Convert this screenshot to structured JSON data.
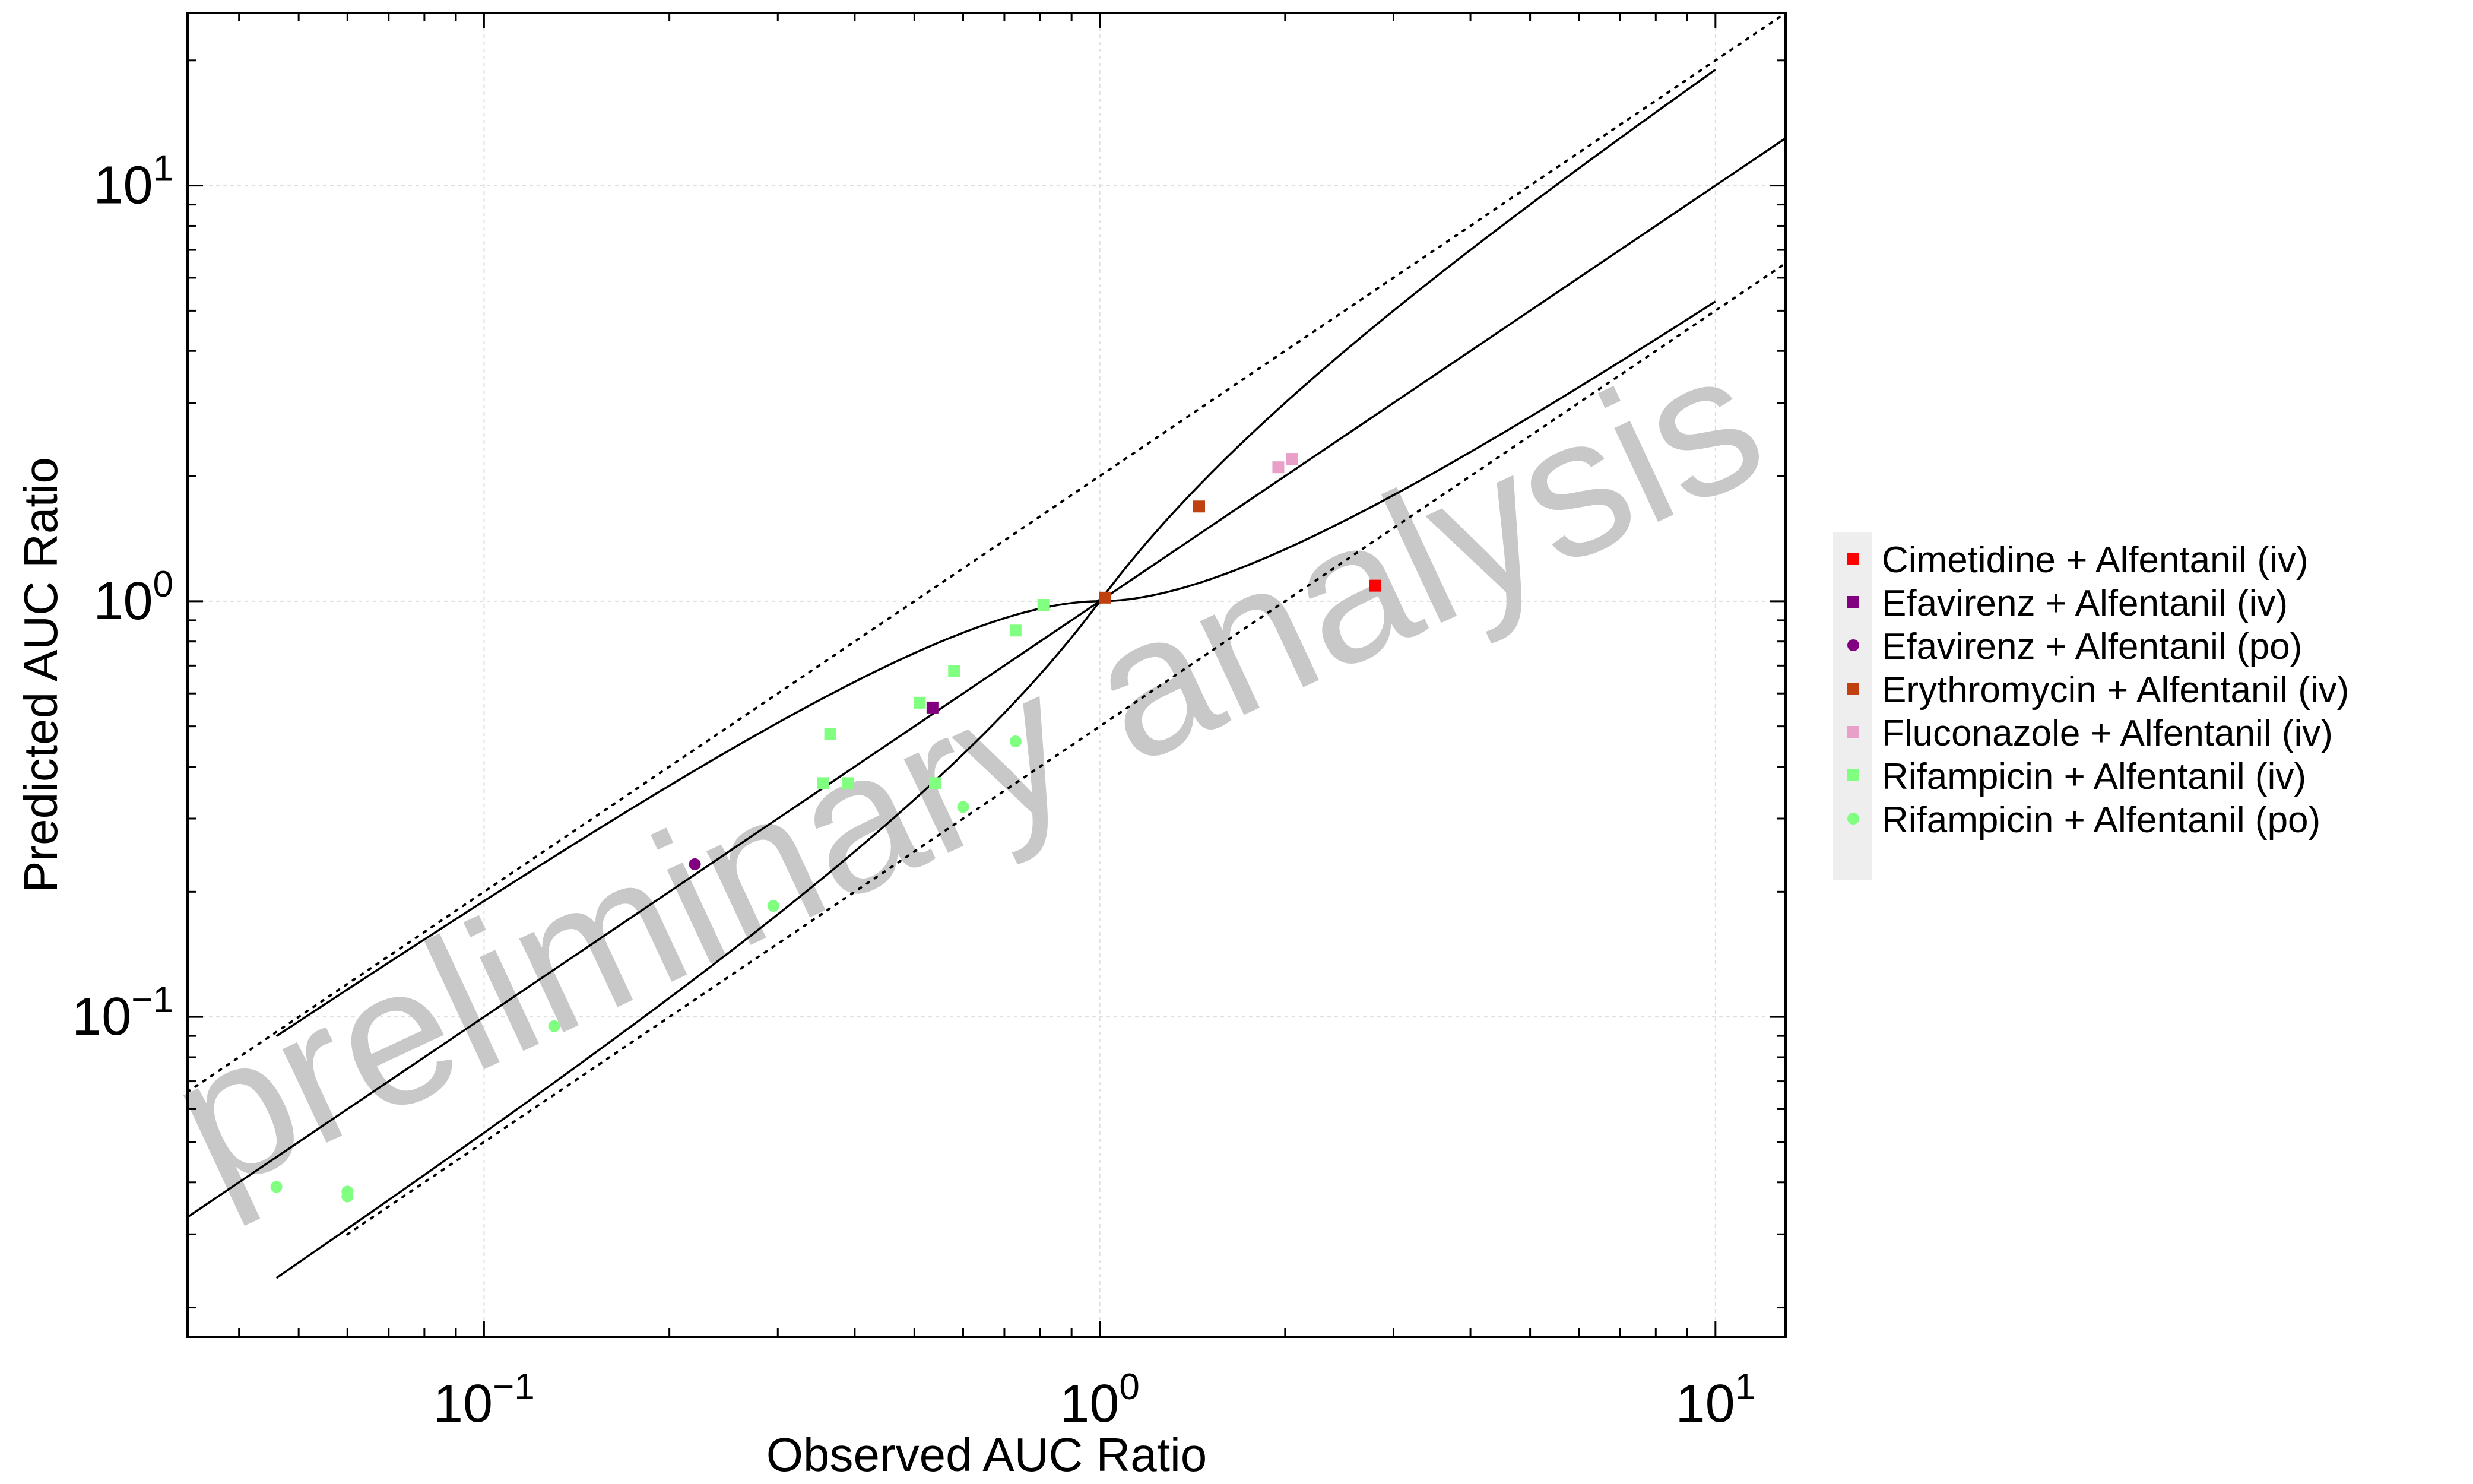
{
  "chart_data": {
    "type": "scatter",
    "xlabel": "Observed AUC Ratio",
    "ylabel": "Predicted AUC Ratio",
    "xscale": "log",
    "yscale": "log",
    "xlim": [
      0.033,
      13
    ],
    "ylim": [
      0.017,
      26
    ],
    "x_ticks": [
      {
        "value": 0.1,
        "base": "10",
        "exp": "−1"
      },
      {
        "value": 1,
        "base": "10",
        "exp": "0"
      },
      {
        "value": 10,
        "base": "10",
        "exp": "1"
      }
    ],
    "y_ticks": [
      {
        "value": 0.1,
        "base": "10",
        "exp": "−1"
      },
      {
        "value": 1,
        "base": "10",
        "exp": "0"
      },
      {
        "value": 10,
        "base": "10",
        "exp": "1"
      }
    ],
    "grid": true,
    "legend_position": "right",
    "watermark": "preliminary analysis",
    "reference_lines": {
      "identity": "y = x",
      "twofold": "y = 2x and y = x/2 (dotted)",
      "guest_limits": "Guest et al. limits (solid curves)"
    },
    "series": [
      {
        "name": "Cimetidine + Alfentanil (iv)",
        "marker": "square",
        "color": "#ff0000",
        "points": [
          [
            2.8,
            1.09
          ]
        ]
      },
      {
        "name": "Efavirenz + Alfentanil (iv)",
        "marker": "square",
        "color": "#800080",
        "points": [
          [
            0.535,
            0.555
          ]
        ]
      },
      {
        "name": "Efavirenz + Alfentanil (po)",
        "marker": "circle",
        "color": "#800080",
        "points": [
          [
            0.22,
            0.233
          ]
        ]
      },
      {
        "name": "Erythromycin + Alfentanil (iv)",
        "marker": "square",
        "color": "#c04010",
        "points": [
          [
            1.02,
            1.02
          ],
          [
            1.45,
            1.69
          ]
        ]
      },
      {
        "name": "Fluconazole + Alfentanil (iv)",
        "marker": "square",
        "color": "#e8a0c8",
        "points": [
          [
            1.95,
            2.1
          ],
          [
            2.05,
            2.2
          ]
        ]
      },
      {
        "name": "Rifampicin + Alfentanil (iv)",
        "marker": "square",
        "color": "#80ff80",
        "points": [
          [
            0.81,
            0.98
          ],
          [
            0.73,
            0.85
          ],
          [
            0.58,
            0.68
          ],
          [
            0.51,
            0.57
          ],
          [
            0.365,
            0.48
          ],
          [
            0.39,
            0.365
          ],
          [
            0.355,
            0.365
          ],
          [
            0.54,
            0.365
          ]
        ]
      },
      {
        "name": "Rifampicin + Alfentanil (po)",
        "marker": "circle",
        "color": "#80ff80",
        "points": [
          [
            0.73,
            0.46
          ],
          [
            0.6,
            0.32
          ],
          [
            0.295,
            0.185
          ],
          [
            0.13,
            0.095
          ],
          [
            0.046,
            0.039
          ],
          [
            0.06,
            0.038
          ],
          [
            0.06,
            0.037
          ]
        ]
      }
    ]
  }
}
